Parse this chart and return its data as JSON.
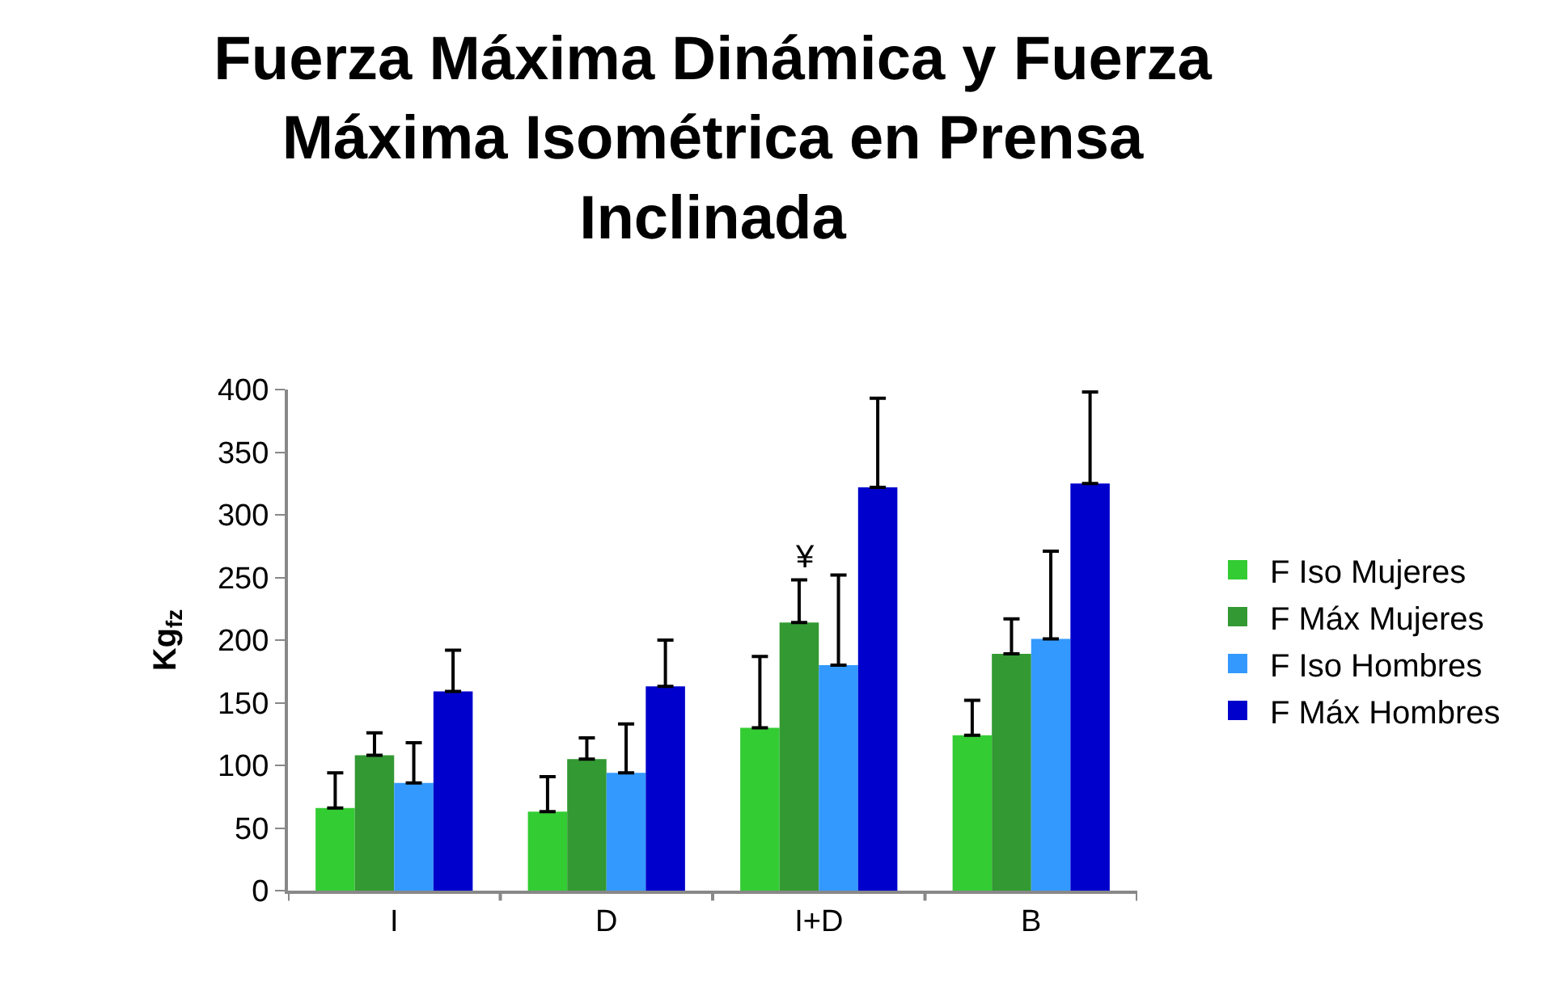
{
  "chart_data": {
    "type": "bar",
    "title": "Fuerza Máxima Dinámica y Fuerza Máxima Isométrica en Prensa Inclinada",
    "ylabel": "Kg$_{fz}$",
    "categories": [
      "I",
      "D",
      "I+D",
      "B"
    ],
    "series": [
      {
        "name": "F Iso Mujeres",
        "color": "#33cc33",
        "values": [
          66,
          63,
          130,
          124
        ],
        "errors": [
          [
            66,
            94
          ],
          [
            63,
            91
          ],
          [
            130,
            187
          ],
          [
            124,
            152
          ]
        ]
      },
      {
        "name": "F Máx Mujeres",
        "color": "#339933",
        "values": [
          108,
          105,
          214,
          189
        ],
        "errors": [
          [
            108,
            126
          ],
          [
            105,
            122
          ],
          [
            214,
            248
          ],
          [
            189,
            217
          ]
        ]
      },
      {
        "name": "F Iso Hombres",
        "color": "#3399ff",
        "values": [
          86,
          94,
          180,
          201
        ],
        "errors": [
          [
            86,
            118
          ],
          [
            94,
            133
          ],
          [
            180,
            252
          ],
          [
            201,
            271
          ]
        ]
      },
      {
        "name": "F Máx Hombres",
        "color": "#0000cc",
        "values": [
          159,
          163,
          322,
          325
        ],
        "errors": [
          [
            159,
            192
          ],
          [
            163,
            200
          ],
          [
            322,
            393
          ],
          [
            325,
            398
          ]
        ]
      }
    ],
    "annotations": [
      "¥"
    ],
    "ylim": [
      0,
      400
    ],
    "yticks": [
      0,
      50,
      100,
      150,
      200,
      250,
      300,
      350,
      400
    ],
    "grid": false,
    "legend": "right"
  }
}
